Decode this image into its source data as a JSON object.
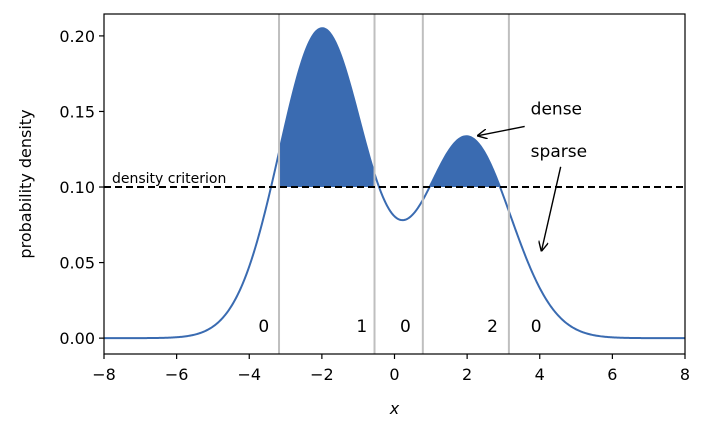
{
  "chart_data": {
    "type": "line",
    "xlabel": "x",
    "ylabel": "probability density",
    "xlim": [
      -8,
      8
    ],
    "ylim": [
      -0.0105,
      0.2145
    ],
    "x_ticks": [
      -8,
      -6,
      -4,
      -2,
      0,
      2,
      4,
      6,
      8
    ],
    "x_tick_labels": [
      "−8",
      "−6",
      "−4",
      "−2",
      "0",
      "2",
      "4",
      "6",
      "8"
    ],
    "y_ticks": [
      0.0,
      0.05,
      0.1,
      0.15,
      0.2
    ],
    "y_tick_labels": [
      "0.00",
      "0.05",
      "0.10",
      "0.15",
      "0.20"
    ],
    "grid": false,
    "series": [
      {
        "components": [
          {
            "weight": 0.6,
            "mean": -2,
            "sd": 1.17
          },
          {
            "weight": 0.4,
            "mean": 2,
            "sd": 1.2
          }
        ],
        "color": "#3a6bb1"
      }
    ],
    "threshold": {
      "y": 0.1,
      "label": "density criterion",
      "color": "#000000"
    },
    "boundaries": [
      -3.18,
      -0.55,
      0.78,
      3.15
    ],
    "boundary_color": "#bfbfbf",
    "fill_color": "#3a6bb1",
    "region_labels": [
      {
        "text": "0",
        "x": -3.6
      },
      {
        "text": "1",
        "x": -0.9
      },
      {
        "text": "0",
        "x": 0.3
      },
      {
        "text": "2",
        "x": 2.7
      },
      {
        "text": "0",
        "x": 3.9
      }
    ],
    "region_label_y": 0.004,
    "annotations": [
      {
        "text": "dense",
        "text_x": 3.75,
        "text_y": 0.148,
        "arrow_to_x": 2.3,
        "arrow_to_y": 0.134
      },
      {
        "text": "sparse",
        "text_x": 3.75,
        "text_y": 0.12,
        "arrow_to_x": 4.05,
        "arrow_to_y": 0.058
      }
    ]
  }
}
